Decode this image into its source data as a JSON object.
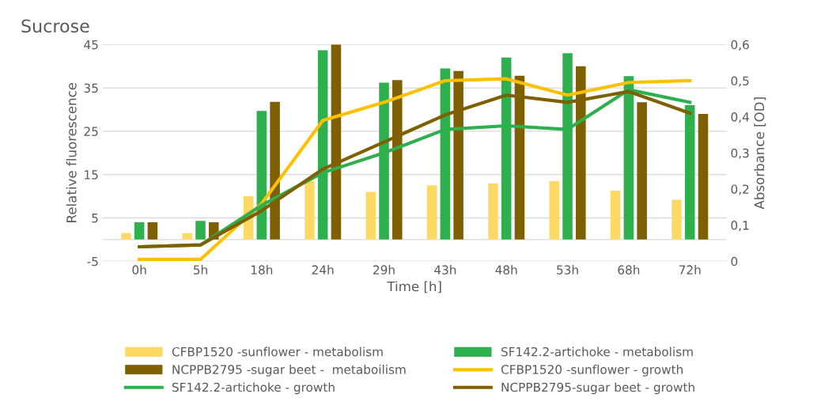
{
  "chart_data": {
    "type": "bar",
    "title": "Sucrose",
    "xlabel": "Time [h]",
    "ylabel": "Relative fluorescence",
    "y2label": "Absorbance [OD]",
    "categories": [
      "0h",
      "5h",
      "18h",
      "24h",
      "29h",
      "43h",
      "48h",
      "53h",
      "68h",
      "72h"
    ],
    "series": [
      {
        "name": "CFBP1520 -sunflower - metabolism",
        "color": "#ffd966",
        "values": [
          1.5,
          1.5,
          10,
          13.5,
          11,
          12.5,
          13,
          13.5,
          11.3,
          9.2
        ]
      },
      {
        "name": "SF142.2-artichoke - metabolism",
        "color": "#2eb04f",
        "values": [
          4,
          4.3,
          29.7,
          43.7,
          36.2,
          39.5,
          42,
          43,
          37.7,
          31
        ]
      },
      {
        "name": "NCPPB2795 -sugar beet -  metaboilism",
        "color": "#7f6000",
        "values": [
          4,
          4,
          31.8,
          45,
          36.8,
          38.9,
          37.8,
          40,
          31.7,
          29
        ]
      },
      {
        "name": "CFBP1520 -sunflower - growth",
        "type": "line",
        "axis": "y2",
        "color": "#ffc000",
        "values": [
          0.005,
          0.005,
          0.16,
          0.39,
          0.44,
          0.5,
          0.505,
          0.46,
          0.495,
          0.5
        ]
      },
      {
        "name": "SF142.2-artichoke - growth",
        "type": "line",
        "axis": "y2",
        "color": "#2eb04f",
        "values": [
          0.04,
          0.045,
          0.155,
          0.245,
          0.3,
          0.365,
          0.375,
          0.365,
          0.475,
          0.44
        ]
      },
      {
        "name": "NCPPB2795-sugar beet - growth",
        "type": "line",
        "axis": "y2",
        "color": "#7f6000",
        "values": [
          0.04,
          0.045,
          0.14,
          0.255,
          0.33,
          0.405,
          0.46,
          0.44,
          0.47,
          0.41
        ]
      }
    ],
    "ylim": [
      -5,
      45
    ],
    "yticks": [
      -5,
      5,
      15,
      25,
      35,
      45
    ],
    "y2lim": [
      0,
      0.6
    ],
    "y2ticks": [
      {
        "value": 0,
        "label": "0"
      },
      {
        "value": 0.1,
        "label": "0,1"
      },
      {
        "value": 0.2,
        "label": "0,2"
      },
      {
        "value": 0.3,
        "label": "0,3"
      },
      {
        "value": 0.4,
        "label": "0,4"
      },
      {
        "value": 0.5,
        "label": "0,5"
      },
      {
        "value": 0.6,
        "label": "0,6"
      }
    ],
    "grid": "y",
    "legend": "bottom",
    "marker": "none"
  }
}
